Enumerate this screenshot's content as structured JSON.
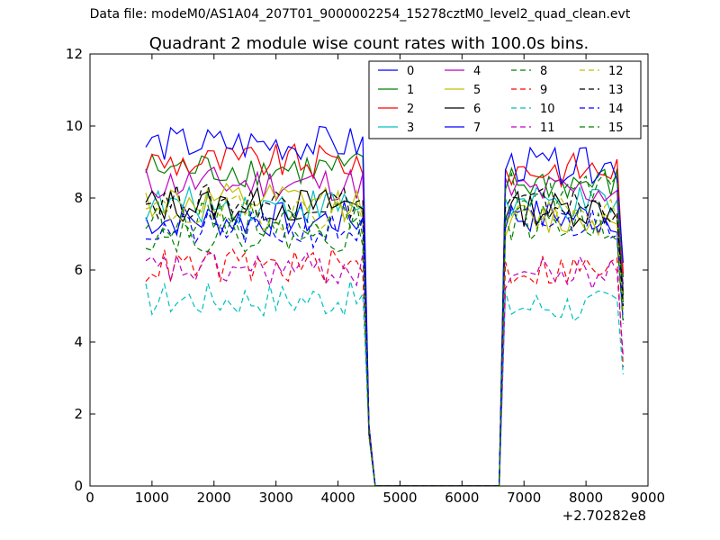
{
  "figure": {
    "suptitle": "Data file: modeM0/AS1A04_207T01_9000002254_15278cztM0_level2_quad_clean.evt"
  },
  "chart_data": {
    "type": "line",
    "title": "Quadrant 2 module wise count rates with 100.0s bins.",
    "xlabel": "",
    "ylabel": "",
    "x_offset_label": "+2.70282e8",
    "xlim": [
      0,
      9000
    ],
    "ylim": [
      0,
      12
    ],
    "x_ticks": [
      "0",
      "1000",
      "2000",
      "3000",
      "4000",
      "5000",
      "6000",
      "7000",
      "8000",
      "9000"
    ],
    "y_ticks": [
      "0",
      "2",
      "4",
      "6",
      "8",
      "10",
      "12"
    ],
    "grid": false,
    "legend_position": "top-right",
    "legend_columns": 4,
    "x_start": 900,
    "x_step": 100,
    "gap": {
      "last_point_before": 4400,
      "zero_from": 4600,
      "zero_to": 6600,
      "resume_at": 6700,
      "x_end": 8600
    },
    "series": [
      {
        "name": "0",
        "color": "#0000ff",
        "dash": "solid",
        "mean1": 7.4,
        "mean2": 7.5,
        "end": 5.6
      },
      {
        "name": "1",
        "color": "#008000",
        "dash": "solid",
        "mean1": 8.8,
        "mean2": 8.4,
        "end": 5.8
      },
      {
        "name": "2",
        "color": "#ff0000",
        "dash": "solid",
        "mean1": 9.0,
        "mean2": 8.8,
        "end": 5.9
      },
      {
        "name": "3",
        "color": "#00bfbf",
        "dash": "solid",
        "mean1": 7.8,
        "mean2": 7.8,
        "end": 5.2
      },
      {
        "name": "4",
        "color": "#bf00bf",
        "dash": "solid",
        "mean1": 8.4,
        "mean2": 8.2,
        "end": 5.4
      },
      {
        "name": "5",
        "color": "#bfbf00",
        "dash": "solid",
        "mean1": 7.9,
        "mean2": 7.4,
        "end": 5.1
      },
      {
        "name": "6",
        "color": "#000000",
        "dash": "solid",
        "mean1": 7.8,
        "mean2": 7.7,
        "end": 5.3
      },
      {
        "name": "7",
        "color": "#0000ff",
        "dash": "solid",
        "mean1": 9.5,
        "mean2": 8.9,
        "end": 6.2
      },
      {
        "name": "8",
        "color": "#008000",
        "dash": "dashed",
        "mean1": 7.4,
        "mean2": 8.2,
        "end": 5.1
      },
      {
        "name": "9",
        "color": "#ff0000",
        "dash": "dashed",
        "mean1": 6.1,
        "mean2": 6.0,
        "end": 3.3
      },
      {
        "name": "10",
        "color": "#00bfbf",
        "dash": "dashed",
        "mean1": 5.2,
        "mean2": 5.0,
        "end": 3.1
      },
      {
        "name": "11",
        "color": "#bf00bf",
        "dash": "dashed",
        "mean1": 6.0,
        "mean2": 5.9,
        "end": 3.6
      },
      {
        "name": "12",
        "color": "#bfbf00",
        "dash": "dashed",
        "mean1": 7.6,
        "mean2": 7.5,
        "end": 4.9
      },
      {
        "name": "13",
        "color": "#000000",
        "dash": "dashed",
        "mean1": 7.9,
        "mean2": 7.8,
        "end": 5.0
      },
      {
        "name": "14",
        "color": "#0000ff",
        "dash": "dashed",
        "mean1": 7.1,
        "mean2": 7.3,
        "end": 4.6
      },
      {
        "name": "15",
        "color": "#008000",
        "dash": "dashed",
        "mean1": 7.0,
        "mean2": 7.3,
        "end": 4.5
      }
    ]
  }
}
